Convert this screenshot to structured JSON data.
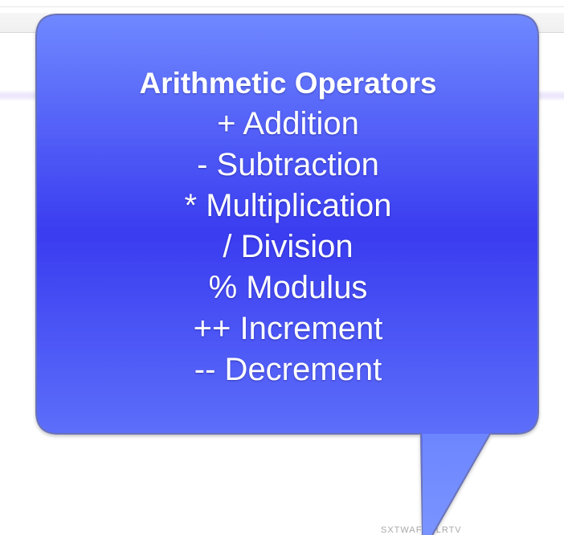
{
  "background": {
    "bottom_text": "SXTWAFEDLRTV"
  },
  "callout": {
    "title": "Arithmetic Operators",
    "items": [
      "+ Addition",
      "- Subtraction",
      "* Multiplication",
      "/ Division",
      "% Modulus",
      "++ Increment",
      "-- Decrement"
    ],
    "colors": {
      "fill_top": "#6f88ff",
      "fill_mid": "#3a3cf0",
      "fill_bottom": "#6e88ff",
      "text": "#ffffff",
      "border": "#6b73b8"
    }
  }
}
